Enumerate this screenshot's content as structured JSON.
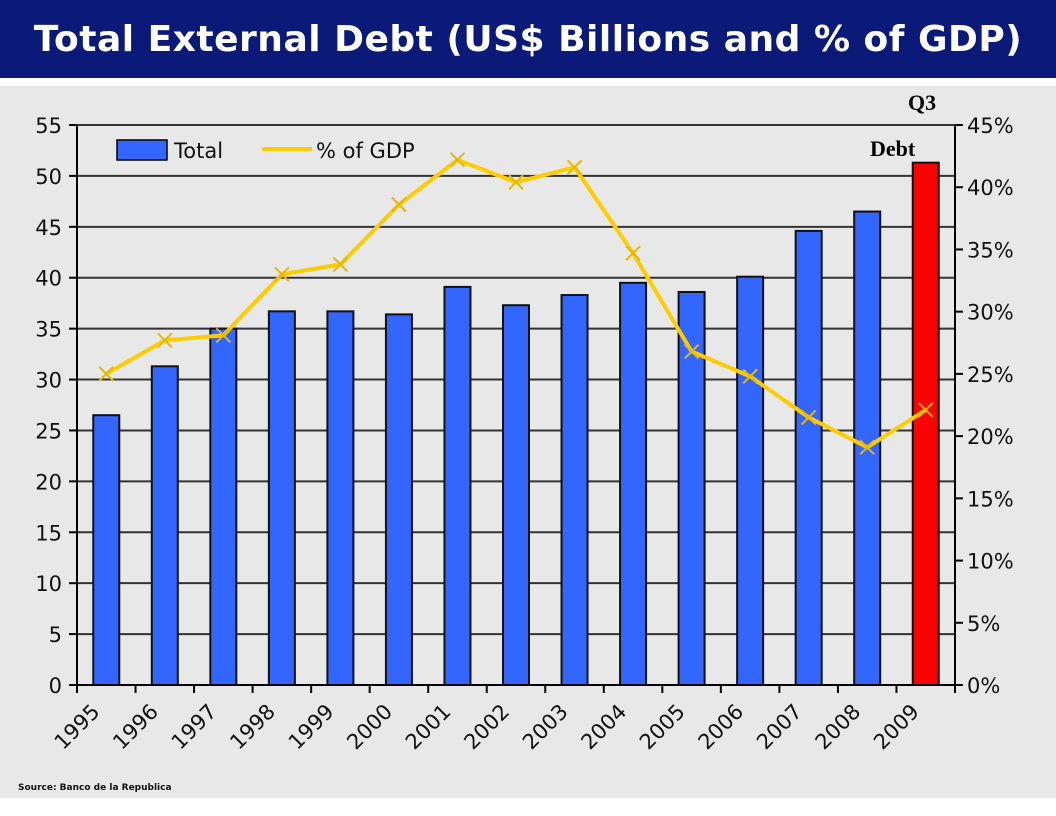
{
  "title": "Total External Debt (US$ Billions and % of GDP)",
  "source": "Source: Banco de la Republica",
  "chart_data": {
    "type": "bar+line",
    "title": "Total External Debt (US$ Billions and % of GDP)",
    "categories": [
      "1995",
      "1996",
      "1997",
      "1998",
      "1999",
      "2000",
      "2001",
      "2002",
      "2003",
      "2004",
      "2005",
      "2006",
      "2007",
      "2008",
      "2009"
    ],
    "series": [
      {
        "name": "Total",
        "type": "bar",
        "axis": "left",
        "color": "#3366ff",
        "highlight_color": "#ff0000",
        "highlight_index": 14,
        "values": [
          26.5,
          31.3,
          35.0,
          36.7,
          36.7,
          36.4,
          39.1,
          37.3,
          38.3,
          39.5,
          38.6,
          40.1,
          44.6,
          46.5,
          51.3
        ]
      },
      {
        "name": "% of GDP",
        "type": "line",
        "axis": "right",
        "color": "#ffcc00",
        "marker": "x",
        "values": [
          25.0,
          27.7,
          28.1,
          33.0,
          33.8,
          38.6,
          42.2,
          40.4,
          41.6,
          34.7,
          26.8,
          24.8,
          21.5,
          19.1,
          22.1
        ]
      }
    ],
    "left_axis": {
      "ylim": [
        0,
        55
      ],
      "ticks": [
        "0",
        "5",
        "10",
        "15",
        "20",
        "25",
        "30",
        "35",
        "40",
        "45",
        "50",
        "55"
      ]
    },
    "right_axis": {
      "ylim": [
        0,
        45
      ],
      "ticks": [
        "0%",
        "5%",
        "10%",
        "15%",
        "20%",
        "25%",
        "30%",
        "35%",
        "40%",
        "45%"
      ]
    },
    "annotation": {
      "line1": "Q3",
      "line2": "Debt"
    },
    "legend": {
      "placement": "top-left",
      "entries": [
        "Total",
        "% of GDP"
      ]
    },
    "grid": true
  }
}
